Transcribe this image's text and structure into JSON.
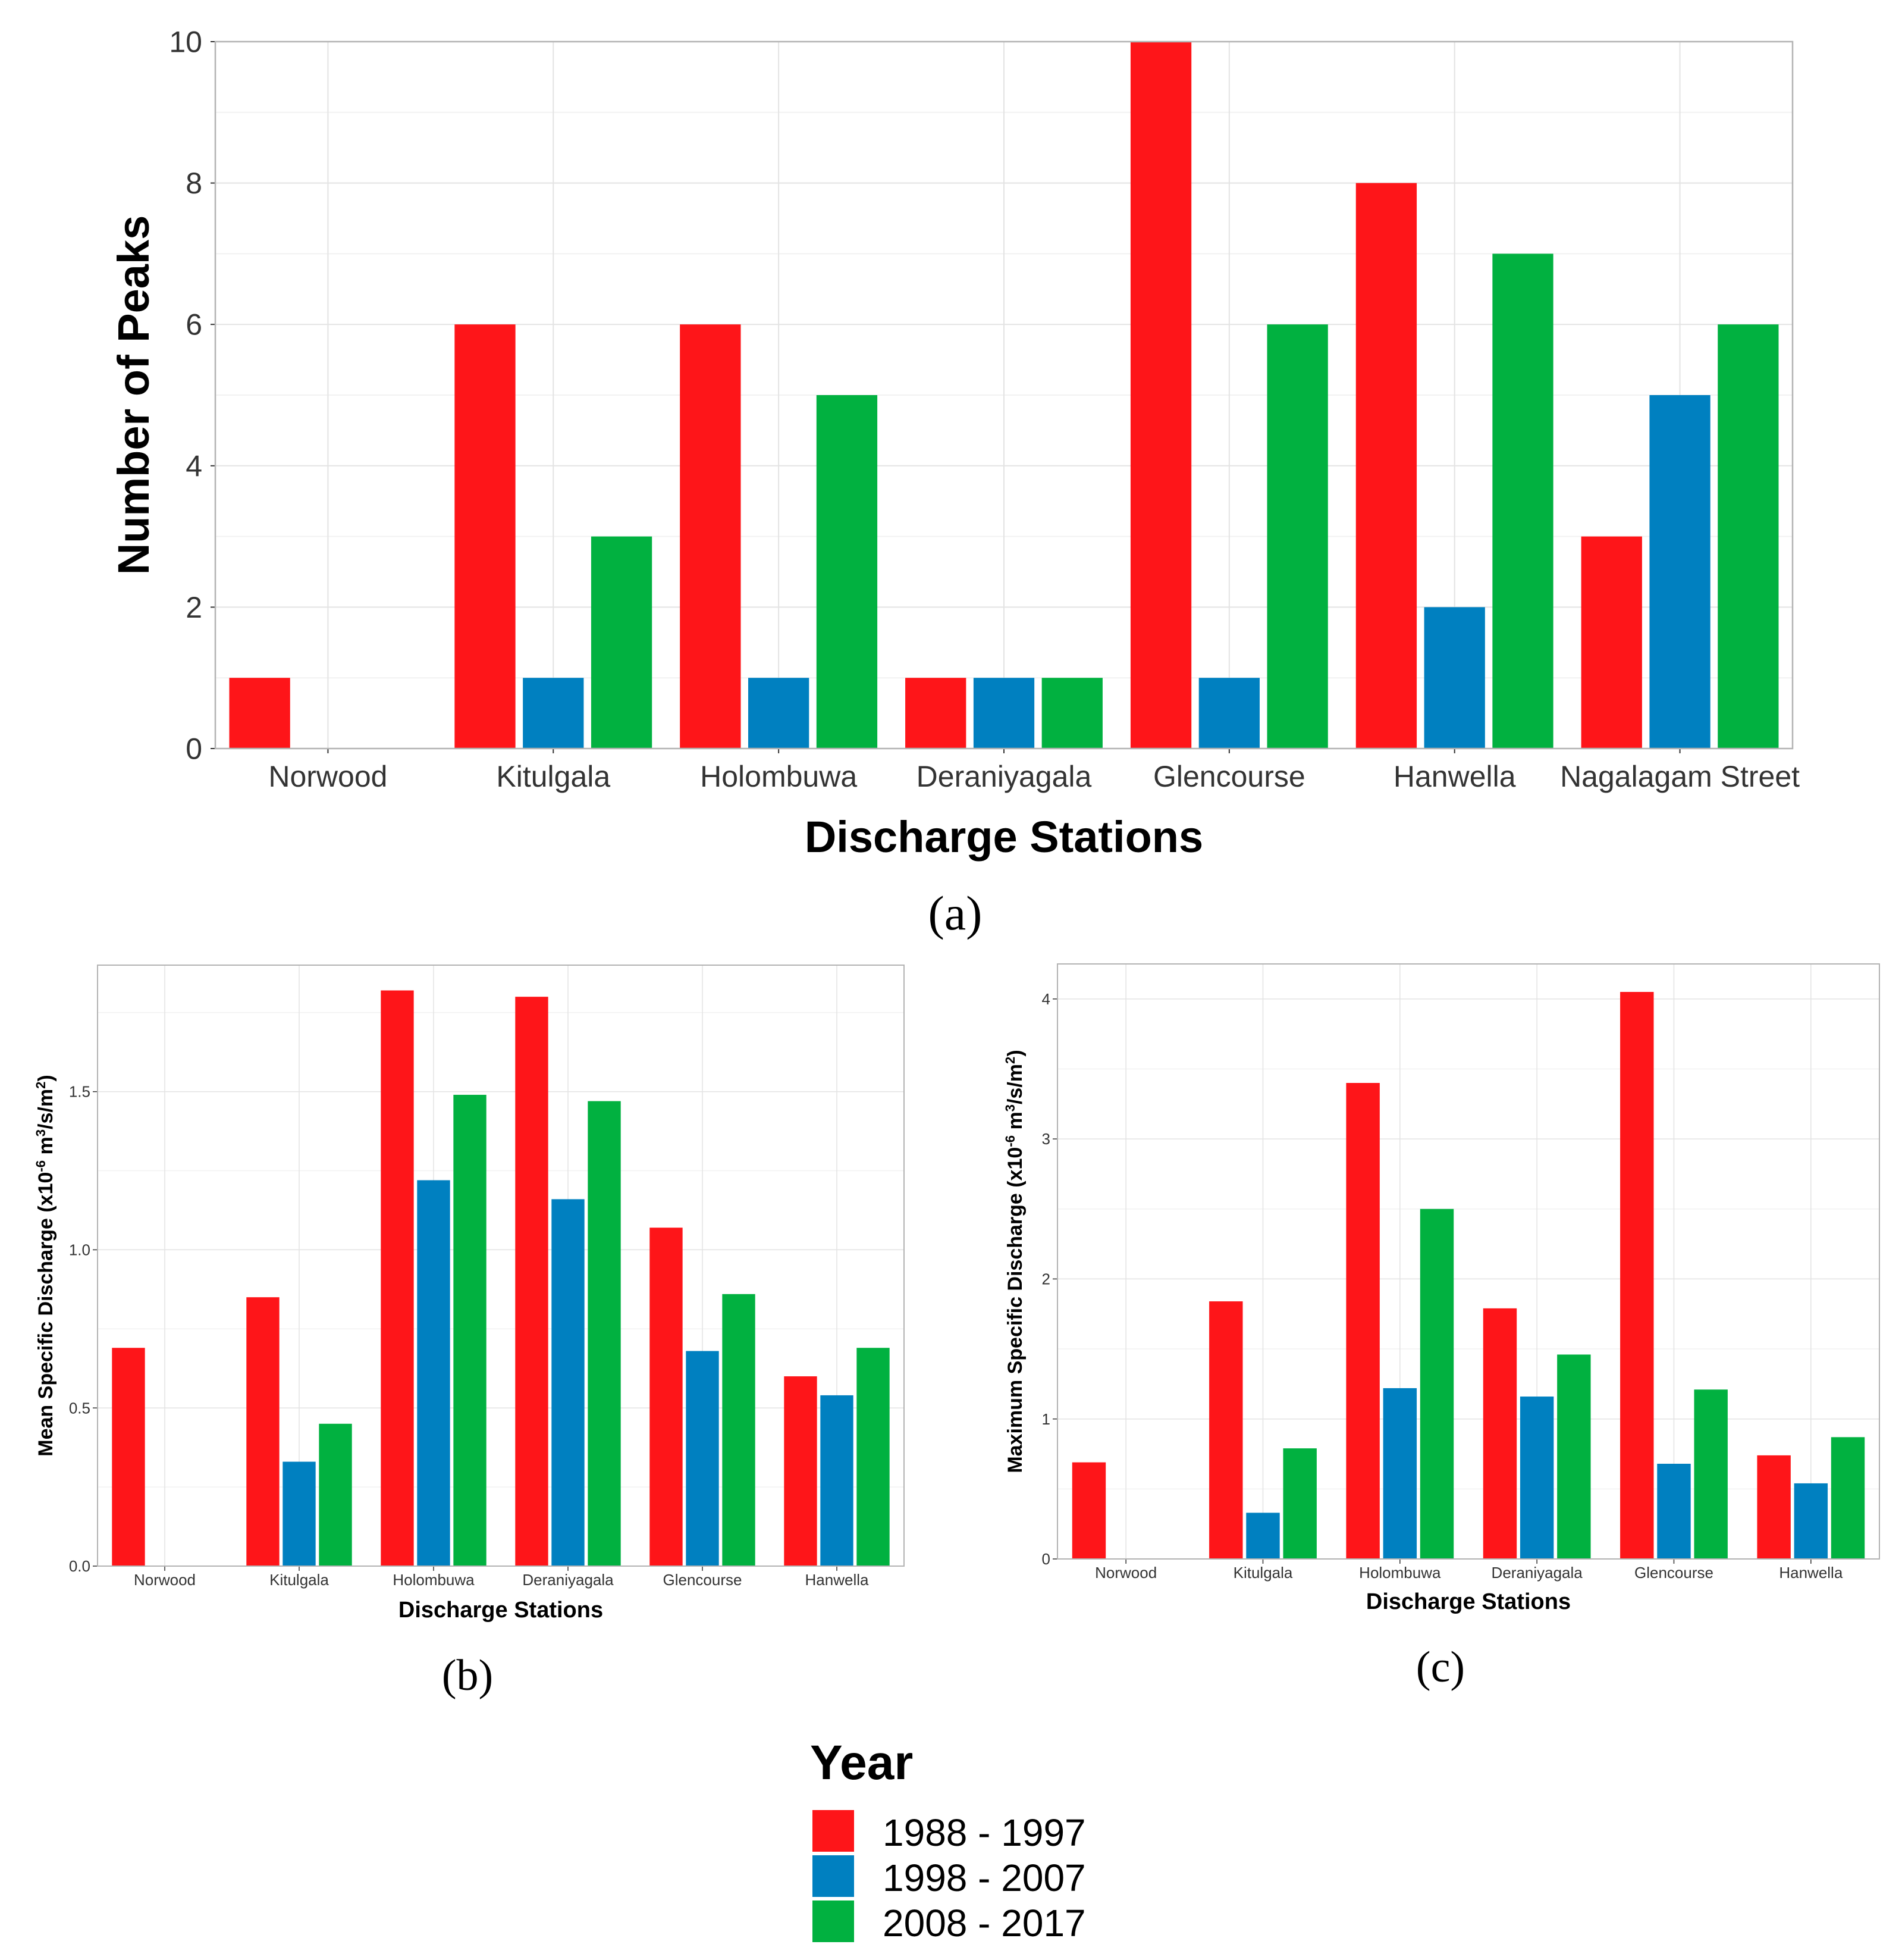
{
  "colors": {
    "s1988": "#fe1519",
    "s1998": "#0080c0",
    "s2008": "#01b140"
  },
  "legend": {
    "title": "Year",
    "items": [
      {
        "label": "1988 - 1997",
        "color": "#fe1519"
      },
      {
        "label": "1998 - 2007",
        "color": "#0080c0"
      },
      {
        "label": "2008 - 2017",
        "color": "#01b140"
      }
    ]
  },
  "chart_data": [
    {
      "id": "a",
      "type": "bar",
      "panel_label": "(a)",
      "xlabel": "Discharge Stations",
      "ylabel": "Number of Peaks",
      "ylim": [
        0,
        10
      ],
      "yticks": [
        "0",
        "2",
        "4",
        "6",
        "8",
        "10"
      ],
      "categories": [
        "Norwood",
        "Kitulgala",
        "Holombuwa",
        "Deraniyagala",
        "Glencourse",
        "Hanwella",
        "Nagalagam Street"
      ],
      "series": [
        {
          "name": "1988 - 1997",
          "values": [
            1,
            6,
            6,
            1,
            10,
            8,
            3
          ]
        },
        {
          "name": "1998 - 2007",
          "values": [
            0,
            1,
            1,
            1,
            1,
            2,
            5
          ]
        },
        {
          "name": "2008 - 2017",
          "values": [
            0,
            3,
            5,
            1,
            6,
            7,
            6
          ]
        }
      ]
    },
    {
      "id": "b",
      "type": "bar",
      "panel_label": "(b)",
      "xlabel": "Discharge Stations",
      "ylabel": "Mean Specific Discharge (x10^-6 m^3/s/m^2)",
      "ylim": [
        0,
        1.9
      ],
      "yticks": [
        "0.0",
        "0.5",
        "1.0",
        "1.5"
      ],
      "categories": [
        "Norwood",
        "Kitulgala",
        "Holombuwa",
        "Deraniyagala",
        "Glencourse",
        "Hanwella"
      ],
      "series": [
        {
          "name": "1988 - 1997",
          "values": [
            0.69,
            0.85,
            1.82,
            1.8,
            1.07,
            0.6
          ]
        },
        {
          "name": "1998 - 2007",
          "values": [
            0,
            0.33,
            1.22,
            1.16,
            0.68,
            0.54
          ]
        },
        {
          "name": "2008 - 2017",
          "values": [
            0,
            0.45,
            1.49,
            1.47,
            0.86,
            0.69
          ]
        }
      ]
    },
    {
      "id": "c",
      "type": "bar",
      "panel_label": "(c)",
      "xlabel": "Discharge Stations",
      "ylabel": "Maximum Specific Discharge (x10^-6 m^3/s/m^2)",
      "ylim": [
        0,
        4.25
      ],
      "yticks": [
        "0",
        "1",
        "2",
        "3",
        "4"
      ],
      "categories": [
        "Norwood",
        "Kitulgala",
        "Holombuwa",
        "Deraniyagala",
        "Glencourse",
        "Hanwella"
      ],
      "series": [
        {
          "name": "1988 - 1997",
          "values": [
            0.69,
            1.84,
            3.4,
            1.79,
            4.05,
            0.74
          ]
        },
        {
          "name": "1998 - 2007",
          "values": [
            0,
            0.33,
            1.22,
            1.16,
            0.68,
            0.54
          ]
        },
        {
          "name": "2008 - 2017",
          "values": [
            0,
            0.79,
            2.5,
            1.46,
            1.21,
            0.87
          ]
        }
      ]
    }
  ]
}
